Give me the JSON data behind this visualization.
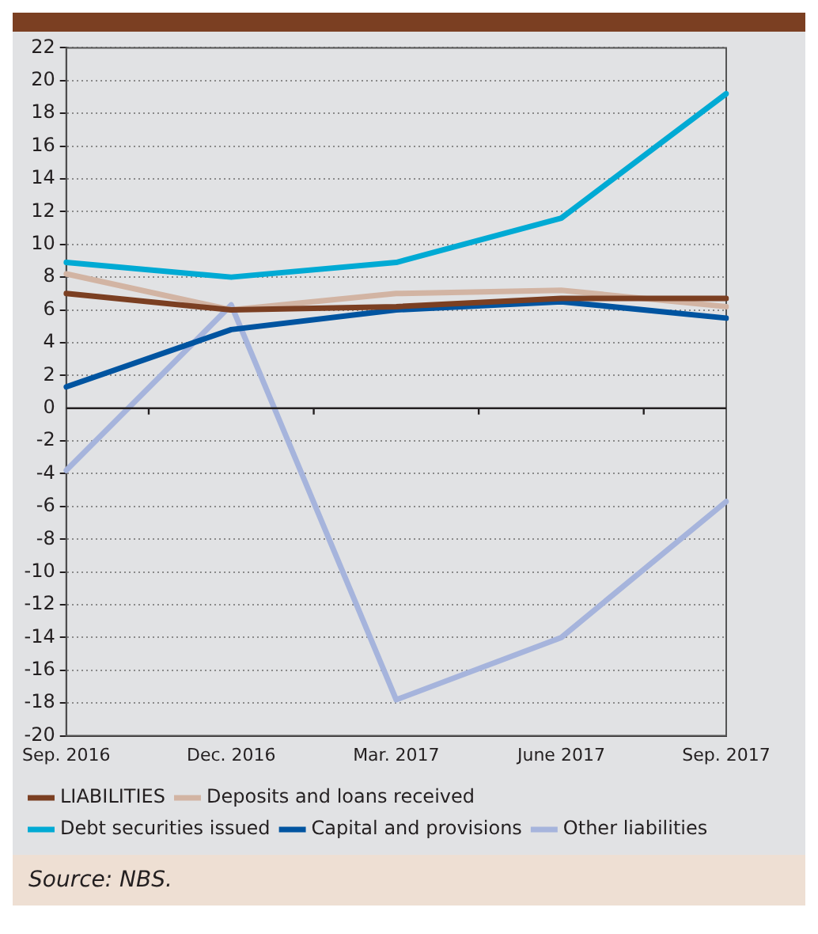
{
  "chart_data": {
    "type": "line",
    "categories": [
      "Sep. 2016",
      "Dec. 2016",
      "Mar. 2017",
      "June 2017",
      "Sep. 2017"
    ],
    "series": [
      {
        "name": "LIABILITIES",
        "color": "#7b3f22",
        "values": [
          7,
          6,
          6.2,
          6.7,
          6.7
        ]
      },
      {
        "name": "Deposits and loans received",
        "color": "#d2b4a3",
        "values": [
          8.2,
          6,
          7,
          7.2,
          6.2
        ]
      },
      {
        "name": "Debt securities issued",
        "color": "#00aad4",
        "values": [
          8.9,
          8,
          8.9,
          11.6,
          19.2
        ]
      },
      {
        "name": "Capital and provisions",
        "color": "#0054a0",
        "values": [
          1.3,
          4.8,
          6,
          6.5,
          5.5
        ]
      },
      {
        "name": "Other liabilities",
        "color": "#a6b4dc",
        "values": [
          -3.8,
          6.3,
          -17.8,
          -14,
          -5.7
        ]
      }
    ],
    "ylim": [
      -20,
      22
    ],
    "yticks": [
      -20,
      -18,
      -16,
      -14,
      -12,
      -10,
      -8,
      -6,
      -4,
      -2,
      0,
      2,
      4,
      6,
      8,
      10,
      12,
      14,
      16,
      18,
      20,
      22
    ],
    "grid": "y",
    "legend": "bottom",
    "marker": "none",
    "line_style": "solid",
    "annotations": [
      "Source: NBS."
    ]
  }
}
